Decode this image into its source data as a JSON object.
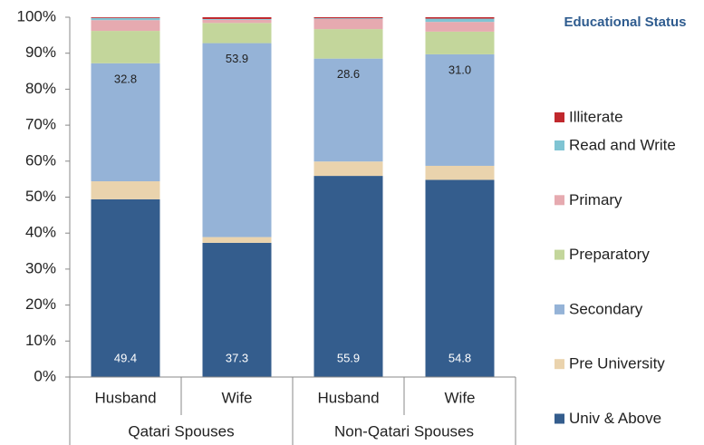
{
  "chart_data": {
    "type": "stacked-bar",
    "legend_title": "Educational Status",
    "groups": [
      {
        "name": "Qatari Spouses",
        "categories": [
          "Husband",
          "Wife"
        ]
      },
      {
        "name": "Non-Qatari Spouses",
        "categories": [
          "Husband",
          "Wife"
        ]
      }
    ],
    "series": [
      {
        "name": "Univ & Above",
        "color": "#345d8d",
        "values": [
          49.4,
          37.3,
          55.9,
          54.8
        ],
        "value_labels": [
          "49.4",
          "37.3",
          "55.9",
          "54.8"
        ]
      },
      {
        "name": "Pre University",
        "color": "#ead3ad",
        "values": [
          5.0,
          1.6,
          4.0,
          3.9
        ]
      },
      {
        "name": "Secondary",
        "color": "#95b3d7",
        "values": [
          32.8,
          53.9,
          28.6,
          31.0
        ],
        "value_labels": [
          "32.8",
          "53.9",
          "28.6",
          "31.0"
        ]
      },
      {
        "name": "Preparatory",
        "color": "#c3d69b",
        "values": [
          9.0,
          5.6,
          8.2,
          6.3
        ]
      },
      {
        "name": "Primary",
        "color": "#e6aab0",
        "values": [
          3.0,
          0.9,
          2.8,
          2.7
        ]
      },
      {
        "name": "Read and Write",
        "color": "#7fc4d3",
        "values": [
          0.6,
          0.2,
          0.2,
          0.9
        ]
      },
      {
        "name": "Illiterate",
        "color": "#c0282d",
        "values": [
          0.2,
          0.5,
          0.3,
          0.4
        ]
      }
    ],
    "ylim": [
      0,
      100
    ],
    "yticks": [
      {
        "value": 0,
        "label": "0%"
      },
      {
        "value": 10,
        "label": "10%"
      },
      {
        "value": 20,
        "label": "20%"
      },
      {
        "value": 30,
        "label": "30%"
      },
      {
        "value": 40,
        "label": "40%"
      },
      {
        "value": 50,
        "label": "50%"
      },
      {
        "value": 60,
        "label": "60%"
      },
      {
        "value": 70,
        "label": "70%"
      },
      {
        "value": 80,
        "label": "80%"
      },
      {
        "value": 90,
        "label": "90%"
      },
      {
        "value": 100,
        "label": "100%"
      }
    ],
    "legend": "right"
  }
}
